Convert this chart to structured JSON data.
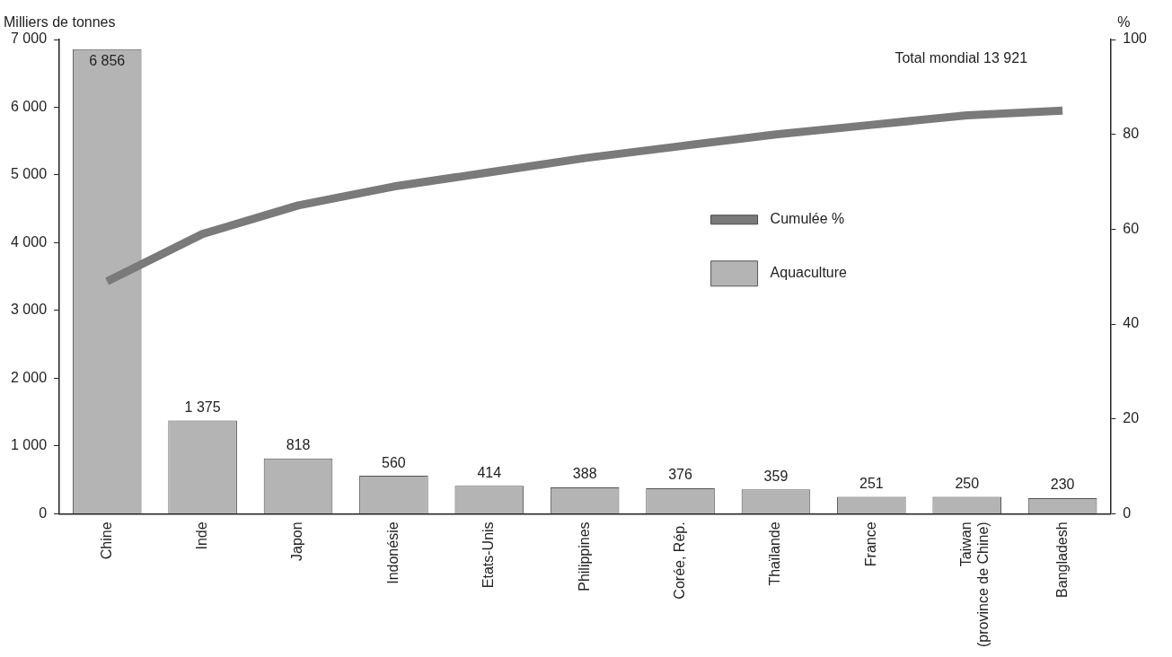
{
  "chart_data": {
    "type": "bar",
    "ylabel": "Milliers de tonnes",
    "y2label": "%",
    "categories": [
      "Chine",
      "Inde",
      "Japon",
      "Indonésie",
      "Etats-Unis",
      "Philippines",
      "Corée, Rép.",
      "Thaïlande",
      "France",
      "Taiwan\n(province de Chine)",
      "Bangladesh"
    ],
    "series": [
      {
        "name": "Aquaculture",
        "color": "#b4b4b4",
        "values": [
          6856,
          1375,
          818,
          560,
          414,
          388,
          376,
          359,
          251,
          250,
          230
        ],
        "value_labels": [
          "6 856",
          "1 375",
          "818",
          "560",
          "414",
          "388",
          "376",
          "359",
          "251",
          "250",
          "230"
        ]
      },
      {
        "name": "Cumulée %",
        "type": "line",
        "axis": "y2",
        "color": "#7a7a7a",
        "values": [
          49,
          59,
          65,
          69,
          72,
          75,
          77.5,
          80,
          82,
          84,
          85
        ]
      }
    ],
    "ylim": [
      0,
      7000
    ],
    "yticks": [
      {
        "value": 0,
        "label": "0"
      },
      {
        "value": 1000,
        "label": "1 000"
      },
      {
        "value": 2000,
        "label": "2 000"
      },
      {
        "value": 3000,
        "label": "3 000"
      },
      {
        "value": 4000,
        "label": "4 000"
      },
      {
        "value": 5000,
        "label": "5 000"
      },
      {
        "value": 6000,
        "label": "6 000"
      },
      {
        "value": 7000,
        "label": "7 000"
      }
    ],
    "y2lim": [
      0,
      100
    ],
    "y2ticks": [
      0,
      20,
      40,
      60,
      80,
      100
    ],
    "annotations": [
      "Total mondial 13 921"
    ],
    "legend": "right",
    "grid": false,
    "marker": "none"
  }
}
